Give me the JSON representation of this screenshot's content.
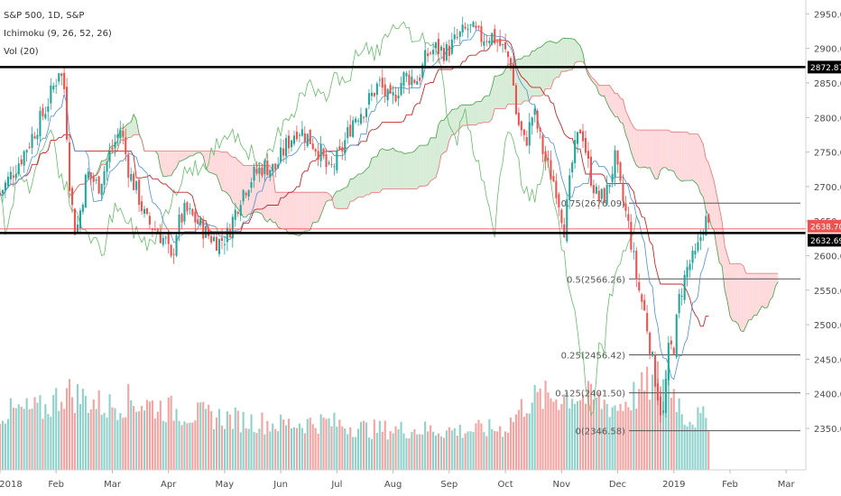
{
  "chart_data": {
    "type": "candlestick",
    "legend": {
      "symbol": "S&P 500, 1D, S&P",
      "ichimoku": "Ichimoku (9, 26, 52, 26)",
      "volume": "Vol (20)"
    },
    "x_labels": [
      "2018",
      "Feb",
      "Mar",
      "Apr",
      "May",
      "Jun",
      "Jul",
      "Aug",
      "Sep",
      "Oct",
      "Nov",
      "Dec",
      "2019",
      "Feb",
      "Mar"
    ],
    "x_label_months": [
      0,
      1,
      2,
      3,
      4,
      5,
      6,
      7,
      8,
      9,
      10,
      11,
      12,
      13,
      14
    ],
    "y_ticks": [
      2350,
      2400,
      2450,
      2500,
      2550,
      2600,
      2650,
      2700,
      2750,
      2800,
      2850,
      2900,
      2950
    ],
    "y_tick_labels": [
      "2350.00",
      "2400.00",
      "2450.00",
      "2500.00",
      "2550.00",
      "2600.00",
      "2650.00",
      "2700.00",
      "2750.00",
      "2800.00",
      "2850.00",
      "2900.00",
      "2950.00"
    ],
    "ylim": [
      2290,
      2970
    ],
    "x_range_months": [
      0,
      14.35
    ],
    "price_anchors": [
      [
        0.0,
        2690
      ],
      [
        0.4,
        2745
      ],
      [
        0.8,
        2810
      ],
      [
        1.0,
        2855
      ],
      [
        1.05,
        2872
      ],
      [
        1.15,
        2840
      ],
      [
        1.25,
        2690
      ],
      [
        1.35,
        2630
      ],
      [
        1.55,
        2720
      ],
      [
        1.75,
        2700
      ],
      [
        1.95,
        2745
      ],
      [
        2.15,
        2785
      ],
      [
        2.3,
        2720
      ],
      [
        2.45,
        2690
      ],
      [
        2.6,
        2650
      ],
      [
        2.75,
        2640
      ],
      [
        2.95,
        2620
      ],
      [
        3.05,
        2590
      ],
      [
        3.15,
        2640
      ],
      [
        3.3,
        2665
      ],
      [
        3.5,
        2650
      ],
      [
        3.7,
        2630
      ],
      [
        3.9,
        2620
      ],
      [
        4.05,
        2630
      ],
      [
        4.3,
        2690
      ],
      [
        4.5,
        2715
      ],
      [
        4.7,
        2730
      ],
      [
        4.9,
        2725
      ],
      [
        5.1,
        2760
      ],
      [
        5.3,
        2785
      ],
      [
        5.5,
        2770
      ],
      [
        5.7,
        2750
      ],
      [
        5.85,
        2720
      ],
      [
        6.05,
        2745
      ],
      [
        6.3,
        2800
      ],
      [
        6.5,
        2815
      ],
      [
        6.75,
        2850
      ],
      [
        6.95,
        2820
      ],
      [
        7.2,
        2860
      ],
      [
        7.45,
        2855
      ],
      [
        7.6,
        2890
      ],
      [
        7.75,
        2900
      ],
      [
        7.95,
        2895
      ],
      [
        8.15,
        2915
      ],
      [
        8.35,
        2930
      ],
      [
        8.55,
        2915
      ],
      [
        8.75,
        2920
      ],
      [
        8.95,
        2900
      ],
      [
        9.1,
        2880
      ],
      [
        9.2,
        2800
      ],
      [
        9.35,
        2760
      ],
      [
        9.5,
        2810
      ],
      [
        9.7,
        2740
      ],
      [
        9.9,
        2700
      ],
      [
        10.05,
        2640
      ],
      [
        10.2,
        2740
      ],
      [
        10.35,
        2790
      ],
      [
        10.5,
        2720
      ],
      [
        10.65,
        2680
      ],
      [
        10.8,
        2690
      ],
      [
        10.95,
        2740
      ],
      [
        11.05,
        2695
      ],
      [
        11.2,
        2640
      ],
      [
        11.35,
        2560
      ],
      [
        11.5,
        2510
      ],
      [
        11.65,
        2430
      ],
      [
        11.8,
        2360
      ],
      [
        11.9,
        2460
      ],
      [
        12.0,
        2470
      ],
      [
        12.1,
        2540
      ],
      [
        12.25,
        2585
      ],
      [
        12.4,
        2600
      ],
      [
        12.55,
        2655
      ],
      [
        12.63,
        2636
      ]
    ],
    "volume_profile": [
      [
        0.0,
        0.45
      ],
      [
        0.8,
        0.48
      ],
      [
        1.15,
        0.62
      ],
      [
        1.4,
        0.58
      ],
      [
        1.9,
        0.5
      ],
      [
        2.3,
        0.55
      ],
      [
        2.8,
        0.5
      ],
      [
        3.3,
        0.45
      ],
      [
        4.2,
        0.4
      ],
      [
        5.0,
        0.36
      ],
      [
        5.8,
        0.38
      ],
      [
        6.6,
        0.32
      ],
      [
        7.4,
        0.32
      ],
      [
        8.2,
        0.31
      ],
      [
        9.0,
        0.33
      ],
      [
        9.4,
        0.55
      ],
      [
        10.2,
        0.6
      ],
      [
        11.0,
        0.5
      ],
      [
        11.6,
        0.68
      ],
      [
        11.85,
        0.78
      ],
      [
        12.2,
        0.42
      ],
      [
        12.63,
        0.4
      ]
    ],
    "horizontal_levels": [
      2872.87,
      2632.69
    ],
    "current_price": 2638.7,
    "price_badges": [
      "2872.87",
      "2638.70",
      "2632.69"
    ],
    "fibonacci": [
      {
        "label": "0.75(2676.09)",
        "value": 2676.09
      },
      {
        "label": "0.5(2566.26)",
        "value": 2566.26
      },
      {
        "label": "0.25(2456.42)",
        "value": 2456.42
      },
      {
        "label": "0.125(2401.50)",
        "value": 2401.5
      },
      {
        "label": "0(2346.58)",
        "value": 2346.58
      }
    ],
    "fib_range_months": [
      11.2,
      14.35
    ],
    "grid": false,
    "colors": {
      "up": "#26a69a",
      "down": "#ef5350",
      "volume_up": "#8fd1ca",
      "volume_down": "#f4a3a1",
      "tenkan": "#4a90d9",
      "kijun": "#c62828",
      "chikou": "#66bb6a",
      "span_a": "#43a047",
      "span_b": "#e57373",
      "cloud_bull": "#c8e6c9",
      "cloud_bear": "#ffcdd2",
      "level_line": "#000000",
      "current_line": "#ef5350",
      "badge_dark": "#000000",
      "badge_red": "#ef5350"
    }
  }
}
